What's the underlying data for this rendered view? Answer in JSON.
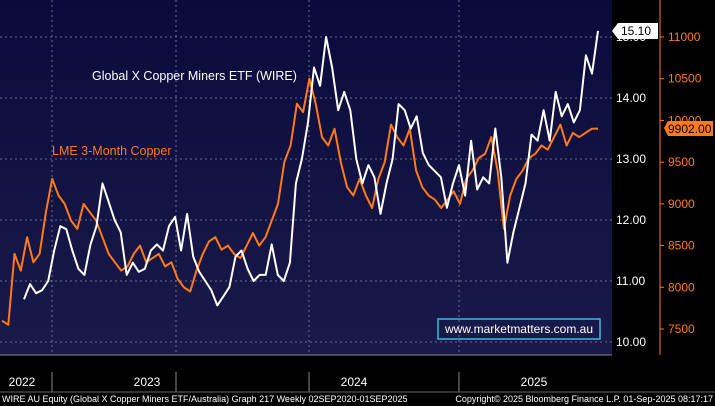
{
  "chart_data": {
    "type": "line",
    "title": "",
    "xlabel": "",
    "ylabel": "",
    "x_tick_labels": [
      "2022",
      "2023",
      "2024",
      "2025"
    ],
    "left_axis": {
      "range": [
        9.8,
        15.5
      ],
      "ticks": [
        "10.00",
        "11.00",
        "12.00",
        "13.00",
        "14.00",
        "15.00"
      ]
    },
    "right_axis": {
      "range": [
        7200,
        11400
      ],
      "ticks": [
        "7500",
        "8000",
        "8500",
        "9000",
        "9500",
        "10000",
        "10500",
        "11000"
      ]
    },
    "grid": true,
    "series": [
      {
        "name": "Global X Copper Miners ETF (WIRE)",
        "axis": "left",
        "color": "#ffffff",
        "last_value_label": "15.10",
        "values": [
          10.7,
          10.95,
          10.8,
          10.85,
          11.0,
          11.5,
          11.9,
          11.85,
          11.5,
          11.2,
          11.1,
          11.6,
          11.9,
          12.6,
          12.3,
          12.0,
          11.8,
          11.1,
          11.3,
          11.15,
          11.2,
          11.5,
          11.6,
          11.5,
          11.9,
          12.05,
          11.5,
          12.1,
          11.4,
          11.15,
          11.0,
          10.85,
          10.6,
          10.75,
          10.9,
          11.4,
          11.5,
          11.2,
          11.0,
          11.1,
          11.1,
          11.6,
          11.1,
          11.0,
          11.3,
          12.6,
          13.0,
          13.6,
          14.5,
          14.2,
          15.0,
          14.5,
          13.8,
          14.1,
          13.8,
          13.0,
          12.6,
          12.9,
          12.7,
          12.1,
          12.6,
          13.0,
          13.9,
          13.8,
          13.5,
          13.7,
          13.1,
          12.9,
          12.8,
          12.7,
          12.2,
          12.6,
          12.9,
          12.4,
          13.3,
          12.5,
          12.7,
          12.6,
          13.5,
          12.7,
          11.3,
          11.8,
          12.2,
          12.6,
          13.4,
          13.3,
          13.8,
          13.3,
          14.1,
          13.7,
          13.9,
          13.6,
          13.8,
          14.7,
          14.4,
          15.1
        ]
      },
      {
        "name": "LME 3-Month Copper",
        "axis": "right",
        "color": "#ff7a1a",
        "last_value_label": "9902.00",
        "values": [
          7600,
          7550,
          8400,
          8200,
          8600,
          8300,
          8400,
          8900,
          9300,
          9100,
          9000,
          8800,
          8700,
          9000,
          8900,
          8800,
          8600,
          8400,
          8300,
          8200,
          8250,
          8400,
          8500,
          8300,
          8350,
          8400,
          8250,
          8300,
          8100,
          8000,
          7950,
          8200,
          8400,
          8550,
          8600,
          8450,
          8500,
          8400,
          8350,
          8500,
          8650,
          8500,
          8600,
          8800,
          9000,
          9500,
          9700,
          10200,
          10100,
          10500,
          10200,
          9800,
          9700,
          9900,
          9500,
          9200,
          9100,
          9300,
          9100,
          8950,
          9300,
          9500,
          9950,
          9800,
          9700,
          9900,
          9400,
          9200,
          9100,
          9050,
          8950,
          9050,
          9150,
          9000,
          9300,
          9400,
          9550,
          9600,
          9800,
          9400,
          8700,
          9100,
          9300,
          9400,
          9550,
          9600,
          9700,
          9650,
          9800,
          9950,
          9700,
          9850,
          9800,
          9850,
          9900,
          9902
        ]
      }
    ],
    "annotations": {
      "label_wire": "Global X Copper Miners ETF (WIRE)",
      "label_copper": "LME 3-Month Copper",
      "watermark": "www.marketmatters.com.au"
    },
    "footer": {
      "left": "WIRE AU Equity (Global X Copper Miners ETF/Australia) Graph 217  Weekly 02SEP2020-01SEP2025",
      "right": "Copyright© 2025 Bloomberg Finance L.P.   01-Sep-2025 08:17:17"
    }
  },
  "colors": {
    "plot_bg_top": "#0a0a3c",
    "plot_bg_bottom": "#1a1a4a",
    "grid": "#6e6e8a",
    "wire": "#ffffff",
    "copper": "#ff7a1a",
    "watermark_border": "#3fb8e0"
  }
}
